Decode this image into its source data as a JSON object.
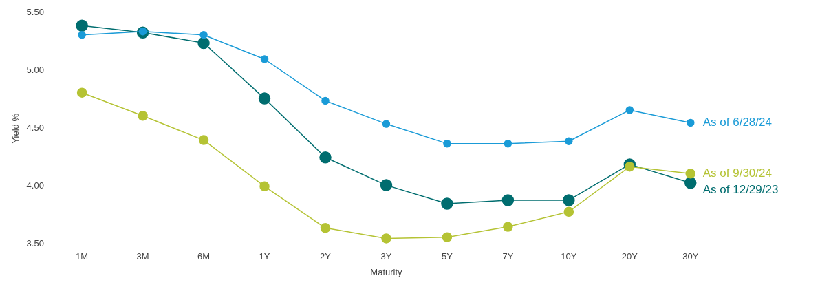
{
  "chart_data": {
    "type": "line",
    "xlabel": "Maturity",
    "ylabel": "Yield %",
    "categories": [
      "1M",
      "3M",
      "6M",
      "1Y",
      "2Y",
      "3Y",
      "5Y",
      "7Y",
      "10Y",
      "20Y",
      "30Y"
    ],
    "series": [
      {
        "name": "As of 6/28/24",
        "color": "#1a9bd7",
        "values": [
          5.31,
          5.34,
          5.31,
          5.1,
          4.74,
          4.54,
          4.37,
          4.37,
          4.39,
          4.66,
          4.55
        ]
      },
      {
        "name": "As of 9/30/24",
        "color": "#b5c334",
        "values": [
          4.81,
          4.61,
          4.4,
          4.0,
          3.64,
          3.55,
          3.56,
          3.65,
          3.78,
          4.17,
          4.11
        ]
      },
      {
        "name": "As of 12/29/23",
        "color": "#006d6f",
        "values": [
          5.39,
          5.33,
          5.24,
          4.76,
          4.25,
          4.01,
          3.85,
          3.88,
          3.88,
          4.19,
          4.03
        ]
      }
    ],
    "ylim": [
      3.5,
      5.5
    ],
    "yticks": [
      {
        "value": 3.5,
        "label": "3.50"
      },
      {
        "value": 4,
        "label": "4.00"
      },
      {
        "value": 4.5,
        "label": "4.50"
      },
      {
        "value": 5,
        "label": "5.00"
      },
      {
        "value": 5.5,
        "label": "5.50"
      }
    ],
    "grid": false,
    "legend": false,
    "marker": "circle",
    "line_style": "solid"
  }
}
